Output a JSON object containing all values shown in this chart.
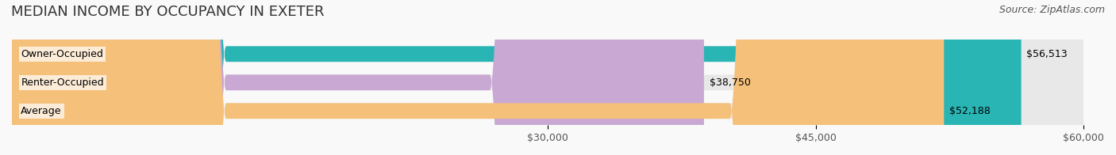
{
  "title": "MEDIAN INCOME BY OCCUPANCY IN EXETER",
  "source": "Source: ZipAtlas.com",
  "categories": [
    "Owner-Occupied",
    "Renter-Occupied",
    "Average"
  ],
  "values": [
    56513,
    38750,
    52188
  ],
  "bar_colors": [
    "#2ab5b5",
    "#c9a8d4",
    "#f5c07a"
  ],
  "bar_bg_color": "#f0f0f0",
  "value_labels": [
    "$56,513",
    "$38,750",
    "$52,188"
  ],
  "xlim": [
    0,
    60000
  ],
  "xticks": [
    30000,
    45000,
    60000
  ],
  "xtick_labels": [
    "$30,000",
    "$45,000",
    "$60,000"
  ],
  "title_fontsize": 13,
  "label_fontsize": 9,
  "source_fontsize": 9,
  "bar_height": 0.55,
  "background_color": "#f9f9f9"
}
